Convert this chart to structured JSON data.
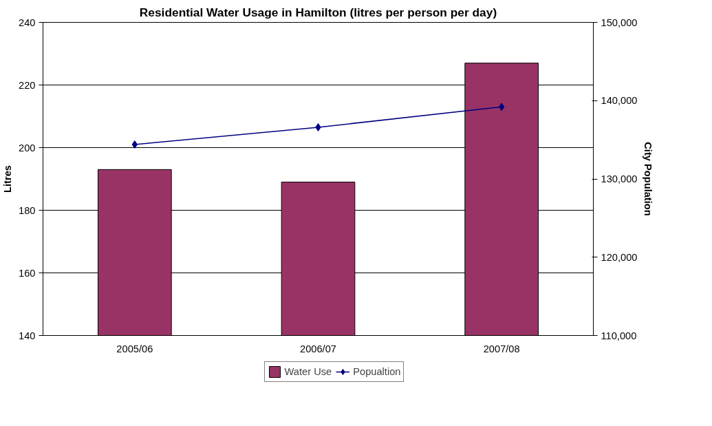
{
  "chart_data": {
    "type": "bar",
    "title": "Residential Water Usage in Hamilton (litres per person per day)",
    "ylabel": "Litres",
    "y2label": "City Population",
    "categories": [
      "2005/06",
      "2006/07",
      "2007/08"
    ],
    "series": [
      {
        "name": "Water Use",
        "color": "#993366",
        "values": [
          193,
          189,
          227
        ]
      },
      {
        "name": "Popualtion",
        "type": "line",
        "axis": "y2",
        "color": "#000080",
        "marker": "diamond",
        "values": [
          134400,
          136600,
          139200
        ]
      }
    ],
    "ylim": [
      140,
      240
    ],
    "yticks": [
      140,
      160,
      180,
      200,
      220,
      240
    ],
    "y2lim": [
      110000,
      150000
    ],
    "y2ticks": [
      {
        "value": 110000,
        "label": "110,000"
      },
      {
        "value": 120000,
        "label": "120,000"
      },
      {
        "value": 130000,
        "label": "130,000"
      },
      {
        "value": 140000,
        "label": "140,000"
      },
      {
        "value": 150000,
        "label": "150,000"
      }
    ],
    "grid": "y",
    "legend": "bottom"
  }
}
